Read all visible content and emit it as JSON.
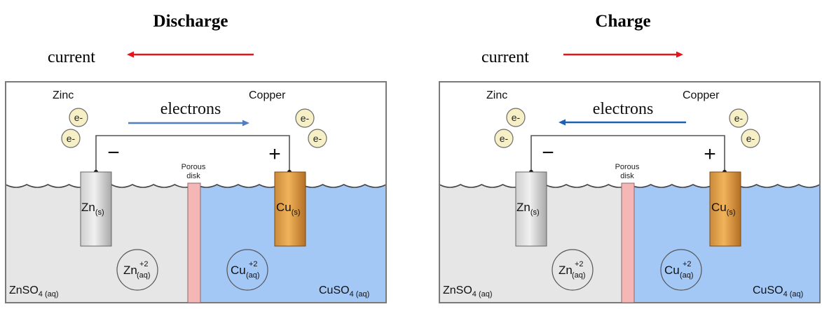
{
  "panels": [
    {
      "id": "discharge",
      "title": "Discharge",
      "current_label": "current",
      "current_direction": "left",
      "electrons_label": "electrons",
      "electron_direction": "right",
      "electron_arrow_color": "#4f7fc0",
      "left_metal_label": "Zinc",
      "right_metal_label": "Copper",
      "left_terminal": "−",
      "right_terminal": "+",
      "porous_label_line1": "Porous",
      "porous_label_line2": "disk",
      "left_electrode": {
        "base": "Zn",
        "sub": "(s)"
      },
      "right_electrode": {
        "base": "Cu",
        "sub": "(s)"
      },
      "left_ion": {
        "base": "Zn",
        "sup": "+2",
        "sub": "(aq)"
      },
      "right_ion": {
        "base": "Cu",
        "sup": "+2",
        "sub": "(aq)"
      },
      "left_solution": {
        "base": "ZnSO",
        "sub": "4 (aq)"
      },
      "right_solution": {
        "base": "CuSO",
        "sub": "4 (aq)"
      },
      "electron_symbol": "e-"
    },
    {
      "id": "charge",
      "title": "Charge",
      "current_label": "current",
      "current_direction": "right",
      "electrons_label": "electrons",
      "electron_direction": "left",
      "electron_arrow_color": "#1f5fb0",
      "left_metal_label": "Zinc",
      "right_metal_label": "Copper",
      "left_terminal": "−",
      "right_terminal": "+",
      "porous_label_line1": "Porous",
      "porous_label_line2": "disk",
      "left_electrode": {
        "base": "Zn",
        "sub": "(s)"
      },
      "right_electrode": {
        "base": "Cu",
        "sub": "(s)"
      },
      "left_ion": {
        "base": "Zn",
        "sup": "+2",
        "sub": "(aq)"
      },
      "right_ion": {
        "base": "Cu",
        "sup": "+2",
        "sub": "(aq)"
      },
      "left_solution": {
        "base": "ZnSO",
        "sub": "4 (aq)"
      },
      "right_solution": {
        "base": "CuSO",
        "sub": "4 (aq)"
      },
      "electron_symbol": "e-"
    }
  ],
  "colors": {
    "current_arrow": "#e8141b",
    "left_solution": "#e6e6e6",
    "right_solution": "#a4c8f6",
    "porous_disk": "#f5b6b6",
    "electron_fill": "#f7f0c6"
  }
}
